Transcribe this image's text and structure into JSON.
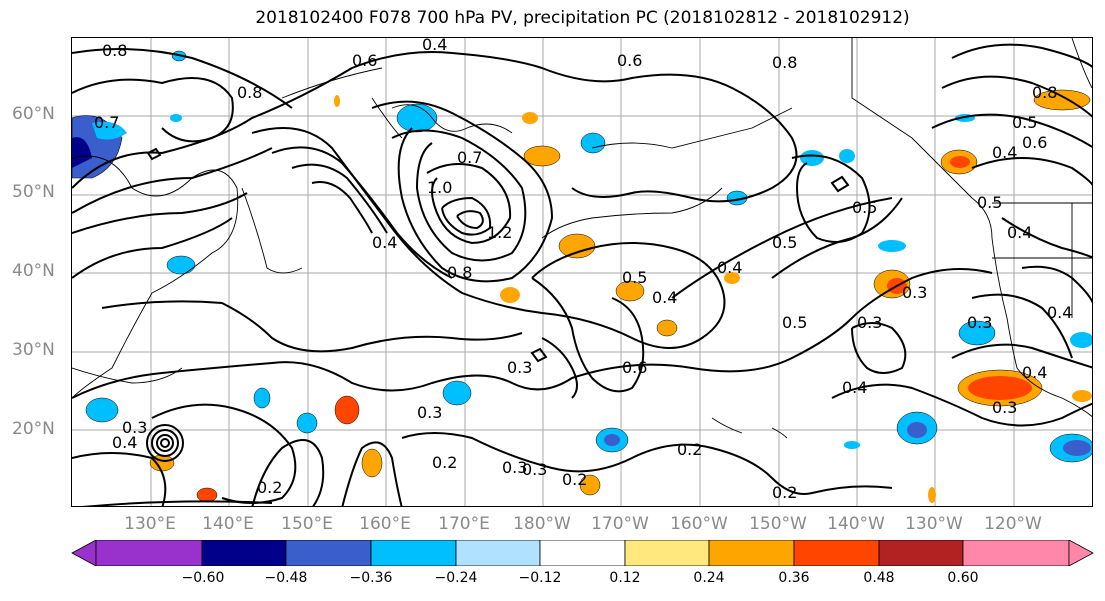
{
  "title": "2018102400 F078 700 hPa PV, precipitation PC (2018102812 - 2018102912)",
  "lat_labels": [
    "60°N",
    "50°N",
    "40°N",
    "30°N",
    "20°N"
  ],
  "lon_labels": [
    "130°E",
    "140°E",
    "150°E",
    "160°E",
    "170°E",
    "180°W",
    "170°W",
    "160°W",
    "150°W",
    "140°W",
    "130°W",
    "120°W"
  ],
  "contour_labels": [
    "0.8",
    "0.6",
    "0.4",
    "0.6",
    "0.8",
    "0.8",
    "0.7",
    "0.7",
    "1.0",
    "1.2",
    "0.8",
    "0.4",
    "0.5",
    "0.4",
    "0.4",
    "0.5",
    "0.5",
    "0.3",
    "0.3",
    "0.6",
    "0.4",
    "0.3",
    "0.3",
    "0.2",
    "0.2",
    "0.3",
    "0.2",
    "0.2",
    "0.2",
    "0.4",
    "0.3",
    "0.5",
    "0.4",
    "0.6",
    "0.8",
    "0.5",
    "0.4",
    "0.5",
    "0.4",
    "0.3",
    "0.3",
    "0.4",
    "0.3"
  ],
  "colorbar": {
    "ticks": [
      "−0.60",
      "−0.48",
      "−0.36",
      "−0.24",
      "−0.12",
      "0.12",
      "0.24",
      "0.36",
      "0.48",
      "0.60"
    ],
    "colors": [
      "#9932cc",
      "#00008b",
      "#3a5fcd",
      "#00bfff",
      "#b0e2ff",
      "#ffffff",
      "#ffe97f",
      "#ffa500",
      "#ff4500",
      "#b22222",
      "#ff88aa",
      "#ff88aa"
    ]
  }
}
